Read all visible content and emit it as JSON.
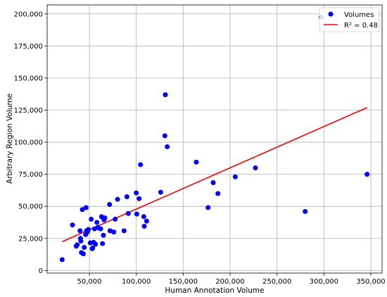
{
  "chart_data": {
    "type": "scatter",
    "title": "",
    "xlabel": "Human Annotation Volume",
    "ylabel": "Arbitrary Region Volume",
    "xlim": [
      5000,
      362000
    ],
    "ylim": [
      -2000,
      207000
    ],
    "grid": true,
    "legend_placement": "top-right",
    "x_ticks": [
      {
        "value": 50000,
        "label": "50,000"
      },
      {
        "value": 100000,
        "label": "100,000"
      },
      {
        "value": 150000,
        "label": "150,000"
      },
      {
        "value": 200000,
        "label": "200,000"
      },
      {
        "value": 250000,
        "label": "250,000"
      },
      {
        "value": 300000,
        "label": "300,000"
      },
      {
        "value": 350000,
        "label": "350,000"
      }
    ],
    "y_ticks": [
      {
        "value": 0,
        "label": "0"
      },
      {
        "value": 25000,
        "label": "25,000"
      },
      {
        "value": 50000,
        "label": "50,000"
      },
      {
        "value": 75000,
        "label": "75,000"
      },
      {
        "value": 100000,
        "label": "100,000"
      },
      {
        "value": 125000,
        "label": "125,000"
      },
      {
        "value": 150000,
        "label": "150,000"
      },
      {
        "value": 175000,
        "label": "175,000"
      },
      {
        "value": 200000,
        "label": "200,000"
      }
    ],
    "series": [
      {
        "name": "Volumes",
        "color": "#0000ff",
        "points": [
          [
            21000,
            8500
          ],
          [
            32000,
            35500
          ],
          [
            36000,
            19000
          ],
          [
            37000,
            20000
          ],
          [
            40000,
            31000
          ],
          [
            40500,
            25000
          ],
          [
            41000,
            23000
          ],
          [
            41500,
            14000
          ],
          [
            42500,
            47500
          ],
          [
            43500,
            13000
          ],
          [
            44500,
            18000
          ],
          [
            46000,
            28000
          ],
          [
            46500,
            49000
          ],
          [
            47000,
            31000
          ],
          [
            48000,
            30000
          ],
          [
            49000,
            32000
          ],
          [
            51000,
            21500
          ],
          [
            52000,
            40000
          ],
          [
            53000,
            17000
          ],
          [
            53500,
            17500
          ],
          [
            54500,
            22000
          ],
          [
            55500,
            32500
          ],
          [
            56500,
            20500
          ],
          [
            58000,
            37500
          ],
          [
            59000,
            33500
          ],
          [
            62000,
            32500
          ],
          [
            63000,
            42000
          ],
          [
            64000,
            21000
          ],
          [
            65000,
            27500
          ],
          [
            65500,
            39500
          ],
          [
            66500,
            41000
          ],
          [
            71500,
            51500
          ],
          [
            72000,
            31000
          ],
          [
            76000,
            30000
          ],
          [
            77500,
            40000
          ],
          [
            80000,
            55500
          ],
          [
            87000,
            31000
          ],
          [
            90000,
            57500
          ],
          [
            91500,
            44500
          ],
          [
            100000,
            60500
          ],
          [
            100500,
            44000
          ],
          [
            103000,
            56000
          ],
          [
            104500,
            82500
          ],
          [
            108000,
            42000
          ],
          [
            108500,
            34500
          ],
          [
            111000,
            38500
          ],
          [
            126000,
            61000
          ],
          [
            130500,
            105000
          ],
          [
            131000,
            137000
          ],
          [
            133000,
            96500
          ],
          [
            164000,
            84500
          ],
          [
            176500,
            49000
          ],
          [
            182000,
            68500
          ],
          [
            187000,
            60000
          ],
          [
            205500,
            73000
          ],
          [
            227000,
            80000
          ],
          [
            280000,
            46000
          ],
          [
            297000,
            197500
          ],
          [
            346000,
            75000
          ]
        ]
      },
      {
        "name": "R² = 0.48",
        "color": "#ff0000",
        "line": [
          [
            21000,
            22500
          ],
          [
            346000,
            127000
          ]
        ]
      }
    ]
  }
}
